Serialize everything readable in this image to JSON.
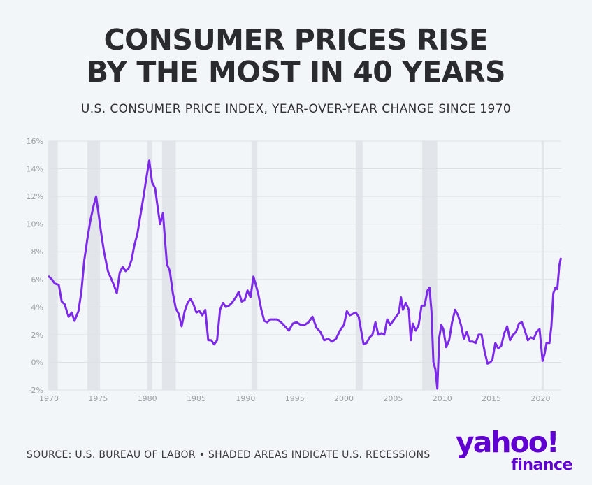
{
  "header": {
    "title_line1": "CONSUMER PRICES RISE",
    "title_line2": "BY THE MOST IN 40 YEARS",
    "subtitle": "U.S. CONSUMER PRICE INDEX, YEAR-OVER-YEAR CHANGE SINCE 1970"
  },
  "footer": {
    "source": "SOURCE: U.S. BUREAU OF LABOR • SHADED AREAS INDICATE U.S. RECESSIONS",
    "logo_text": "yahoo!",
    "logo_sub": "finance"
  },
  "colors": {
    "line": "#7c2ae8",
    "recession": "#e2e5e9",
    "grid": "#dde1e6",
    "brand": "#6001d2"
  },
  "chart_data": {
    "type": "line",
    "title": "CONSUMER PRICES RISE BY THE MOST IN 40 YEARS",
    "subtitle": "U.S. CONSUMER PRICE INDEX, YEAR-OVER-YEAR CHANGE SINCE 1970",
    "xlabel": "",
    "ylabel": "",
    "xlim": [
      1970,
      2022.1
    ],
    "ylim": [
      -2,
      16
    ],
    "y_ticks": [
      "16%",
      "14%",
      "12%",
      "10%",
      "8%",
      "6%",
      "4%",
      "2%",
      "0%",
      "-2%"
    ],
    "y_tick_values": [
      16,
      14,
      12,
      10,
      8,
      6,
      4,
      2,
      0,
      -2
    ],
    "x_ticks": [
      "1970",
      "1975",
      "1980",
      "1985",
      "1990",
      "1995",
      "2000",
      "2005",
      "2010",
      "2015",
      "2020"
    ],
    "x_tick_values": [
      1970,
      1975,
      1980,
      1985,
      1990,
      1995,
      2000,
      2005,
      2010,
      2015,
      2020
    ],
    "grid": true,
    "recessions": [
      [
        1969.9,
        1970.9
      ],
      [
        1973.9,
        1975.2
      ],
      [
        1980.0,
        1980.5
      ],
      [
        1981.5,
        1982.9
      ],
      [
        1990.6,
        1991.2
      ],
      [
        2001.2,
        2001.9
      ],
      [
        2007.95,
        2009.5
      ],
      [
        2020.1,
        2020.35
      ]
    ],
    "series": [
      {
        "x": [
          1970.0,
          1970.3,
          1970.6,
          1971.0,
          1971.3,
          1971.6,
          1972.0,
          1972.3,
          1972.6,
          1973.0,
          1973.3,
          1973.6,
          1973.9,
          1974.2,
          1974.5,
          1974.8,
          1975.0,
          1975.3,
          1975.6,
          1976.0,
          1976.3,
          1976.6,
          1976.9,
          1977.2,
          1977.5,
          1977.8,
          1978.1,
          1978.4,
          1978.7,
          1979.0,
          1979.3,
          1979.6,
          1979.9,
          1980.2,
          1980.5,
          1980.8,
          1981.0,
          1981.3,
          1981.6,
          1981.8,
          1982.0,
          1982.3,
          1982.6,
          1982.9,
          1983.2,
          1983.5,
          1983.8,
          1984.1,
          1984.4,
          1984.7,
          1985.0,
          1985.3,
          1985.6,
          1985.9,
          1986.2,
          1986.5,
          1986.8,
          1987.1,
          1987.4,
          1987.7,
          1988.0,
          1988.3,
          1988.6,
          1989.0,
          1989.3,
          1989.6,
          1989.9,
          1990.2,
          1990.5,
          1990.8,
          1991.0,
          1991.3,
          1991.6,
          1991.9,
          1992.2,
          1992.5,
          1992.8,
          1993.2,
          1993.6,
          1994.0,
          1994.4,
          1994.8,
          1995.2,
          1995.6,
          1996.0,
          1996.4,
          1996.8,
          1997.2,
          1997.6,
          1998.0,
          1998.4,
          1998.8,
          1999.2,
          1999.6,
          2000.0,
          2000.3,
          2000.6,
          2000.9,
          2001.2,
          2001.5,
          2001.8,
          2002.0,
          2002.3,
          2002.6,
          2002.9,
          2003.2,
          2003.5,
          2003.8,
          2004.1,
          2004.4,
          2004.7,
          2005.0,
          2005.3,
          2005.6,
          2005.8,
          2006.0,
          2006.3,
          2006.6,
          2006.8,
          2007.0,
          2007.3,
          2007.6,
          2007.9,
          2008.2,
          2008.5,
          2008.7,
          2008.9,
          2009.1,
          2009.3,
          2009.5,
          2009.7,
          2009.9,
          2010.1,
          2010.4,
          2010.7,
          2011.0,
          2011.3,
          2011.6,
          2011.9,
          2012.2,
          2012.5,
          2012.8,
          2013.1,
          2013.4,
          2013.7,
          2014.0,
          2014.3,
          2014.6,
          2014.9,
          2015.1,
          2015.4,
          2015.7,
          2016.0,
          2016.3,
          2016.6,
          2016.9,
          2017.2,
          2017.5,
          2017.8,
          2018.1,
          2018.4,
          2018.7,
          2019.0,
          2019.3,
          2019.6,
          2019.9,
          2020.2,
          2020.4,
          2020.6,
          2020.9,
          2021.1,
          2021.3,
          2021.5,
          2021.7,
          2021.9,
          2022.05
        ],
        "values": [
          6.2,
          6.0,
          5.7,
          5.6,
          4.4,
          4.2,
          3.3,
          3.6,
          3.0,
          3.7,
          5.1,
          7.4,
          8.9,
          10.2,
          11.2,
          12.0,
          11.0,
          9.4,
          8.0,
          6.6,
          6.1,
          5.6,
          5.0,
          6.5,
          6.9,
          6.6,
          6.8,
          7.4,
          8.5,
          9.3,
          10.6,
          11.9,
          13.3,
          14.6,
          13.0,
          12.6,
          11.5,
          10.0,
          10.8,
          8.9,
          7.1,
          6.6,
          5.0,
          3.9,
          3.5,
          2.6,
          3.7,
          4.3,
          4.6,
          4.2,
          3.6,
          3.7,
          3.4,
          3.8,
          1.6,
          1.6,
          1.3,
          1.6,
          3.8,
          4.3,
          4.0,
          4.1,
          4.3,
          4.7,
          5.1,
          4.4,
          4.5,
          5.2,
          4.7,
          6.2,
          5.7,
          4.9,
          3.8,
          3.0,
          2.9,
          3.1,
          3.1,
          3.1,
          2.9,
          2.6,
          2.3,
          2.8,
          2.9,
          2.7,
          2.7,
          2.9,
          3.3,
          2.5,
          2.2,
          1.6,
          1.7,
          1.5,
          1.7,
          2.3,
          2.7,
          3.7,
          3.4,
          3.5,
          3.6,
          3.3,
          2.1,
          1.3,
          1.4,
          1.8,
          2.0,
          2.9,
          2.0,
          2.1,
          2.0,
          3.1,
          2.7,
          3.0,
          3.3,
          3.6,
          4.7,
          3.8,
          4.3,
          3.8,
          1.6,
          2.8,
          2.3,
          2.7,
          4.1,
          4.1,
          5.2,
          5.4,
          3.7,
          0.0,
          -0.5,
          -1.9,
          1.8,
          2.7,
          2.4,
          1.1,
          1.6,
          2.9,
          3.8,
          3.4,
          2.7,
          1.7,
          2.2,
          1.5,
          1.5,
          1.4,
          2.0,
          2.0,
          0.8,
          -0.1,
          0.0,
          0.2,
          1.4,
          1.0,
          1.2,
          2.1,
          2.6,
          1.6,
          2.0,
          2.2,
          2.8,
          2.9,
          2.3,
          1.6,
          1.8,
          1.7,
          2.2,
          2.4,
          0.1,
          0.6,
          1.4,
          1.4,
          2.6,
          5.0,
          5.4,
          5.3,
          7.0,
          7.5
        ]
      }
    ]
  }
}
